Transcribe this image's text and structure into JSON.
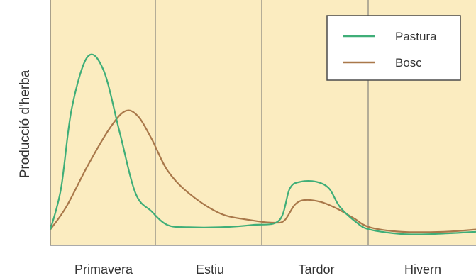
{
  "chart_data": {
    "type": "line",
    "title": "",
    "xlabel": "",
    "ylabel": "Producció d'herba",
    "categories": [
      "Primavera",
      "Estiu",
      "Tardor",
      "Hivern"
    ],
    "ylim": [
      0,
      100
    ],
    "grid": "vertical separators between seasons",
    "legend": {
      "placement": "top-right"
    },
    "background_color": "#fbecc0",
    "series": [
      {
        "name": "Pastura",
        "color": "#3fae78",
        "points": [
          [
            0.0,
            2
          ],
          [
            0.1,
            20
          ],
          [
            0.2,
            55
          ],
          [
            0.35,
            78
          ],
          [
            0.5,
            72
          ],
          [
            0.65,
            45
          ],
          [
            0.8,
            18
          ],
          [
            0.95,
            10
          ],
          [
            1.1,
            4
          ],
          [
            1.3,
            3
          ],
          [
            1.6,
            3
          ],
          [
            1.9,
            4
          ],
          [
            2.15,
            6
          ],
          [
            2.25,
            20
          ],
          [
            2.35,
            23
          ],
          [
            2.5,
            23
          ],
          [
            2.62,
            20
          ],
          [
            2.72,
            12
          ],
          [
            2.88,
            5
          ],
          [
            3.0,
            2
          ],
          [
            3.3,
            0
          ],
          [
            3.6,
            0
          ],
          [
            4.0,
            1
          ]
        ]
      },
      {
        "name": "Bosc",
        "color": "#a9784a",
        "points": [
          [
            0.0,
            2
          ],
          [
            0.15,
            12
          ],
          [
            0.35,
            30
          ],
          [
            0.55,
            46
          ],
          [
            0.7,
            54
          ],
          [
            0.82,
            52
          ],
          [
            0.95,
            42
          ],
          [
            1.1,
            28
          ],
          [
            1.3,
            18
          ],
          [
            1.6,
            9
          ],
          [
            1.9,
            6
          ],
          [
            2.1,
            5
          ],
          [
            2.2,
            6
          ],
          [
            2.3,
            13
          ],
          [
            2.4,
            15
          ],
          [
            2.55,
            14
          ],
          [
            2.7,
            11
          ],
          [
            2.85,
            7
          ],
          [
            3.0,
            3
          ],
          [
            3.3,
            1
          ],
          [
            3.7,
            1
          ],
          [
            4.0,
            2
          ]
        ]
      }
    ]
  }
}
